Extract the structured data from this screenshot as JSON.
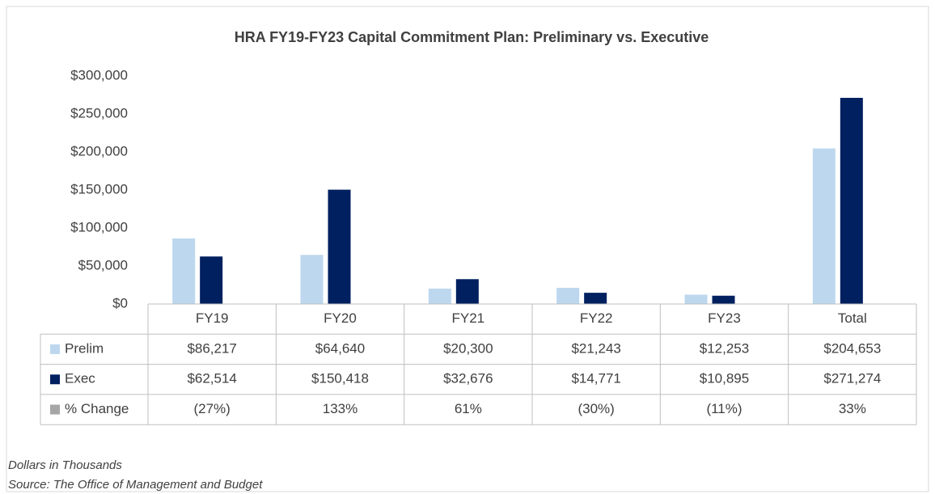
{
  "chart_data": {
    "type": "bar",
    "title": "HRA FY19-FY23 Capital Commitment Plan: Preliminary vs. Executive",
    "categories": [
      "FY19",
      "FY20",
      "FY21",
      "FY22",
      "FY23",
      "Total"
    ],
    "series": [
      {
        "name": "Prelim",
        "color": "#bdd7ee",
        "bars": true,
        "values": [
          86217,
          64640,
          20300,
          21243,
          12253,
          204653
        ],
        "value_labels": [
          "$86,217",
          "$64,640",
          "$20,300",
          "$21,243",
          "$12,253",
          "$204,653"
        ]
      },
      {
        "name": "Exec",
        "color": "#002060",
        "bars": true,
        "values": [
          62514,
          150418,
          32676,
          14771,
          10895,
          271274
        ],
        "value_labels": [
          "$62,514",
          "$150,418",
          "$32,676",
          "$14,771",
          "$10,895",
          "$271,274"
        ]
      },
      {
        "name": "% Change",
        "color": "#a6a6a6",
        "bars": false,
        "values": [
          -27,
          133,
          61,
          -30,
          -11,
          33
        ],
        "value_labels": [
          "(27%)",
          "133%",
          "61%",
          "(30%)",
          "(11%)",
          "33%"
        ]
      }
    ],
    "ylim": [
      0,
      300000
    ],
    "yticks": [
      {
        "value": 0,
        "label": "$0"
      },
      {
        "value": 50000,
        "label": "$50,000"
      },
      {
        "value": 100000,
        "label": "$100,000"
      },
      {
        "value": 150000,
        "label": "$150,000"
      },
      {
        "value": 200000,
        "label": "$200,000"
      },
      {
        "value": 250000,
        "label": "$250,000"
      },
      {
        "value": 300000,
        "label": "$300,000"
      }
    ],
    "grid": false,
    "notes": [
      "Dollars in Thousands",
      "Source: The Office of Management and Budget"
    ]
  }
}
